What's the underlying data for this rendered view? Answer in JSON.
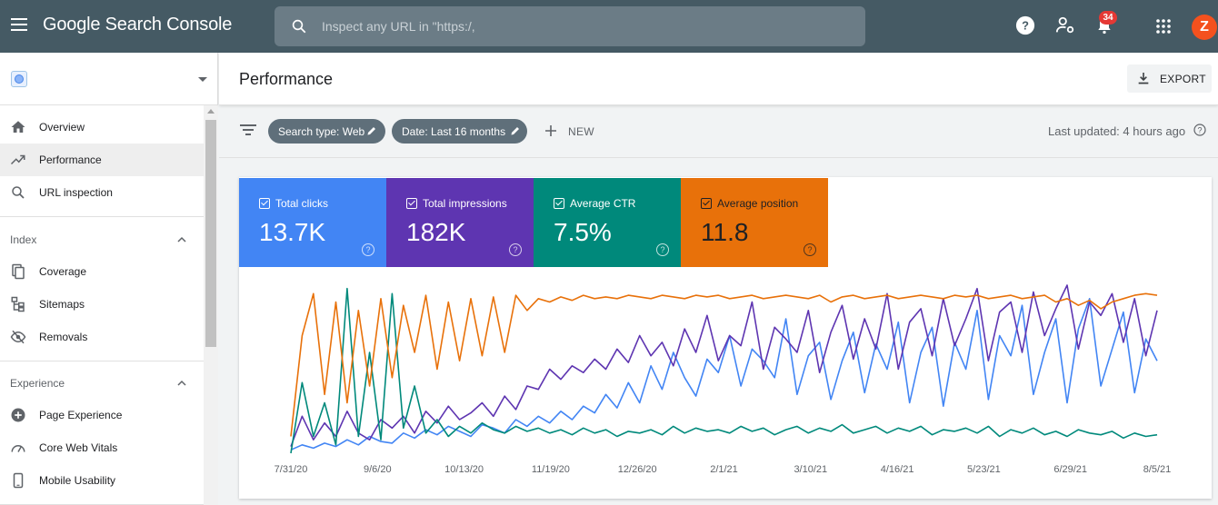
{
  "topbar": {
    "product_name": "Google Search Console",
    "search_placeholder": "Inspect any URL in \"https:/,",
    "notification_count": "34",
    "avatar_letter": "Z",
    "icons": [
      "menu-icon",
      "search-icon",
      "help-icon",
      "manage-users-icon",
      "notifications-icon",
      "apps-icon"
    ]
  },
  "sidebar": {
    "property_icon": "globe-icon",
    "items_top": [
      {
        "label": "Overview",
        "icon": "home-icon"
      },
      {
        "label": "Performance",
        "icon": "trending-up-icon",
        "active": true
      },
      {
        "label": "URL inspection",
        "icon": "search-icon"
      }
    ],
    "index_section": {
      "title": "Index",
      "items": [
        {
          "label": "Coverage",
          "icon": "coverage-icon"
        },
        {
          "label": "Sitemaps",
          "icon": "sitemaps-icon"
        },
        {
          "label": "Removals",
          "icon": "removals-icon"
        }
      ]
    },
    "experience_section": {
      "title": "Experience",
      "items": [
        {
          "label": "Page Experience",
          "icon": "page-experience-icon"
        },
        {
          "label": "Core Web Vitals",
          "icon": "gauge-icon"
        },
        {
          "label": "Mobile Usability",
          "icon": "phone-icon"
        }
      ]
    }
  },
  "main": {
    "title": "Performance",
    "export_label": "EXPORT",
    "filters": [
      {
        "label": "Search type: Web"
      },
      {
        "label": "Date: Last 16 months"
      }
    ],
    "new_label": "NEW",
    "last_updated": "Last updated: 4 hours ago"
  },
  "metrics": [
    {
      "label": "Total clicks",
      "value": "13.7K",
      "color": "#4285f4",
      "checked": true
    },
    {
      "label": "Total impressions",
      "value": "182K",
      "color": "#5e35b1",
      "checked": true
    },
    {
      "label": "Average CTR",
      "value": "7.5%",
      "color": "#00897b",
      "checked": true
    },
    {
      "label": "Average position",
      "value": "11.8",
      "color": "#e8710a",
      "checked": true
    }
  ],
  "chart_data": {
    "type": "line",
    "x_tick_labels": [
      "7/31/20",
      "9/6/20",
      "10/13/20",
      "11/19/20",
      "12/26/20",
      "2/1/21",
      "3/10/21",
      "4/16/21",
      "5/23/21",
      "6/29/21",
      "8/5/21"
    ],
    "x_range": [
      "2020-07-31",
      "2021-08-20"
    ],
    "grid": false,
    "legend": "none",
    "series": [
      {
        "name": "Total clicks",
        "color": "#4285f4",
        "values": [
          0.02,
          0.05,
          0.03,
          0.06,
          0.04,
          0.08,
          0.05,
          0.1,
          0.07,
          0.06,
          0.12,
          0.09,
          0.14,
          0.11,
          0.16,
          0.13,
          0.1,
          0.17,
          0.15,
          0.12,
          0.2,
          0.16,
          0.22,
          0.18,
          0.25,
          0.2,
          0.28,
          0.24,
          0.35,
          0.27,
          0.42,
          0.3,
          0.52,
          0.38,
          0.6,
          0.45,
          0.34,
          0.56,
          0.48,
          0.7,
          0.4,
          0.62,
          0.55,
          0.45,
          0.8,
          0.35,
          0.58,
          0.66,
          0.32,
          0.55,
          0.72,
          0.36,
          0.65,
          0.5,
          0.78,
          0.3,
          0.6,
          0.75,
          0.28,
          0.66,
          0.5,
          0.85,
          0.32,
          0.7,
          0.58,
          0.88,
          0.35,
          0.6,
          0.8,
          0.3,
          0.74,
          0.92,
          0.4,
          0.62,
          0.84,
          0.36,
          0.68,
          0.55
        ]
      },
      {
        "name": "Total impressions",
        "color": "#5e35b1",
        "values": [
          0.04,
          0.22,
          0.08,
          0.18,
          0.1,
          0.25,
          0.12,
          0.08,
          0.2,
          0.15,
          0.22,
          0.12,
          0.25,
          0.18,
          0.28,
          0.2,
          0.24,
          0.3,
          0.22,
          0.34,
          0.26,
          0.4,
          0.38,
          0.5,
          0.44,
          0.52,
          0.48,
          0.56,
          0.5,
          0.62,
          0.54,
          0.7,
          0.58,
          0.66,
          0.52,
          0.74,
          0.6,
          0.82,
          0.55,
          0.7,
          0.64,
          0.9,
          0.5,
          0.75,
          0.68,
          0.6,
          0.85,
          0.48,
          0.72,
          0.88,
          0.56,
          0.8,
          0.62,
          0.95,
          0.5,
          0.78,
          0.86,
          0.58,
          0.92,
          0.64,
          0.8,
          0.98,
          0.55,
          0.84,
          0.9,
          0.6,
          0.96,
          0.7,
          0.86,
          1.0,
          0.62,
          0.9,
          0.82,
          0.95,
          0.66,
          0.92,
          0.58,
          0.85
        ]
      },
      {
        "name": "Average CTR",
        "color": "#00897b",
        "values": [
          0.0,
          0.42,
          0.1,
          0.3,
          0.05,
          0.98,
          0.1,
          0.6,
          0.08,
          0.95,
          0.15,
          0.4,
          0.12,
          0.2,
          0.1,
          0.16,
          0.12,
          0.18,
          0.14,
          0.12,
          0.16,
          0.13,
          0.15,
          0.12,
          0.14,
          0.11,
          0.15,
          0.12,
          0.14,
          0.1,
          0.13,
          0.12,
          0.14,
          0.11,
          0.16,
          0.12,
          0.15,
          0.13,
          0.14,
          0.12,
          0.16,
          0.13,
          0.15,
          0.11,
          0.14,
          0.16,
          0.12,
          0.15,
          0.13,
          0.17,
          0.12,
          0.14,
          0.16,
          0.12,
          0.15,
          0.13,
          0.16,
          0.11,
          0.14,
          0.13,
          0.15,
          0.12,
          0.16,
          0.1,
          0.14,
          0.12,
          0.15,
          0.11,
          0.13,
          0.1,
          0.14,
          0.12,
          0.11,
          0.13,
          0.09,
          0.12,
          0.1,
          0.11
        ]
      },
      {
        "name": "Average position",
        "color": "#e8710a",
        "values": [
          0.1,
          0.7,
          0.95,
          0.35,
          0.9,
          0.3,
          0.85,
          0.4,
          0.92,
          0.45,
          0.88,
          0.6,
          0.94,
          0.5,
          0.9,
          0.55,
          0.92,
          0.58,
          0.93,
          0.6,
          0.94,
          0.85,
          0.92,
          0.9,
          0.93,
          0.91,
          0.94,
          0.92,
          0.93,
          0.92,
          0.94,
          0.93,
          0.92,
          0.94,
          0.93,
          0.92,
          0.94,
          0.93,
          0.94,
          0.92,
          0.93,
          0.94,
          0.92,
          0.93,
          0.94,
          0.93,
          0.92,
          0.94,
          0.9,
          0.93,
          0.94,
          0.92,
          0.93,
          0.94,
          0.92,
          0.93,
          0.94,
          0.93,
          0.92,
          0.94,
          0.93,
          0.94,
          0.92,
          0.93,
          0.94,
          0.92,
          0.93,
          0.94,
          0.9,
          0.92,
          0.88,
          0.91,
          0.86,
          0.9,
          0.92,
          0.94,
          0.95,
          0.94
        ]
      }
    ]
  }
}
